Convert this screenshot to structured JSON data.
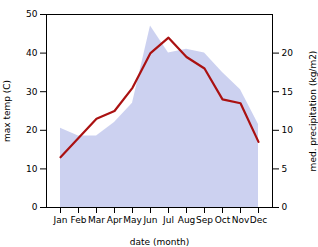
{
  "chart_data": {
    "type": "area",
    "categories": [
      "Jan",
      "Feb",
      "Mar",
      "Apr",
      "May",
      "Jun",
      "Jul",
      "Aug",
      "Sep",
      "Oct",
      "Nov",
      "Dec"
    ],
    "series": [
      {
        "type": "area",
        "color": "#b0b8e8",
        "values": [
          20.5,
          18.5,
          18.5,
          22.0,
          27.0,
          47.0,
          40.0,
          41.0,
          40.0,
          35.0,
          30.5,
          21.5
        ]
      },
      {
        "type": "line",
        "color": "#aa1111",
        "axis": "y2",
        "values": [
          6.5,
          9.0,
          11.5,
          12.5,
          15.5,
          20.0,
          22.0,
          19.5,
          18.0,
          14.0,
          13.5,
          8.5
        ]
      }
    ],
    "xlabel": "date (month)",
    "ylabel": "max temp (C)",
    "y2label": "med. precipitation (kg/m2)",
    "ylim": [
      0,
      50
    ],
    "yticks": [
      0,
      10,
      20,
      30,
      40,
      50
    ],
    "y2lim": [
      0,
      25
    ],
    "y2ticks": [
      0,
      5,
      10,
      15,
      20
    ],
    "grid": false
  }
}
